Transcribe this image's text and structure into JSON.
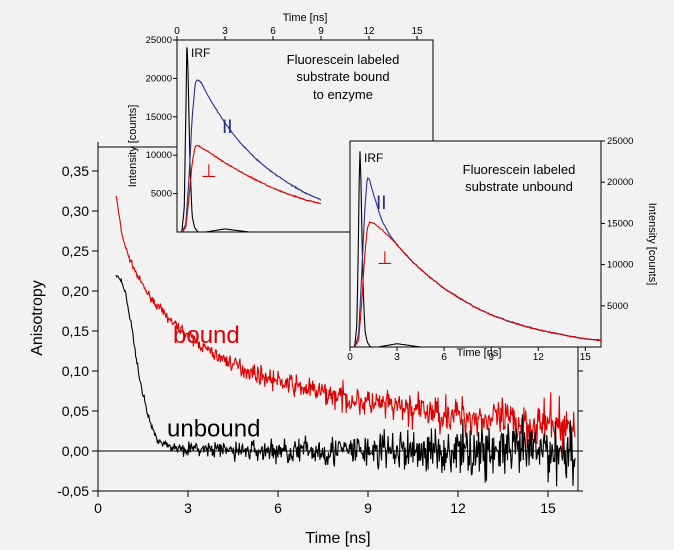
{
  "chart_data": [
    {
      "type": "line",
      "title": "",
      "xlabel": "Time [ns]",
      "ylabel": "Anisotropy",
      "xlim": [
        0,
        16
      ],
      "ylim": [
        -0.05,
        0.38
      ],
      "xticks": [
        0,
        3,
        6,
        9,
        12,
        15
      ],
      "xtick_labels": [
        "0",
        "3",
        "6",
        "9",
        "12",
        "15"
      ],
      "yticks": [
        -0.05,
        0,
        0.05,
        0.1,
        0.15,
        0.2,
        0.25,
        0.3,
        0.35
      ],
      "ytick_labels": [
        "-0,05",
        "0,00",
        "0,05",
        "0,10",
        "0,15",
        "0,20",
        "0,25",
        "0,30",
        "0,35"
      ],
      "grid": false,
      "annotations": [
        {
          "text": "bound",
          "x": 2.5,
          "y": 0.135,
          "color": "#e00000"
        },
        {
          "text": "unbound",
          "x": 2.3,
          "y": 0.018,
          "color": "#000000"
        }
      ],
      "series": [
        {
          "color": "#e00000",
          "x": [
            0.6,
            0.8,
            1.0,
            1.3,
            1.6,
            2.0,
            2.5,
            3.0,
            3.5,
            4.0,
            5.0,
            6.0,
            7.0,
            8.0,
            9.0,
            10.0,
            11.0,
            12.0,
            13.0,
            14.0,
            15.0,
            15.9
          ],
          "y": [
            0.32,
            0.27,
            0.245,
            0.22,
            0.2,
            0.18,
            0.16,
            0.145,
            0.13,
            0.118,
            0.1,
            0.087,
            0.077,
            0.068,
            0.06,
            0.054,
            0.049,
            0.045,
            0.04,
            0.036,
            0.033,
            0.03
          ]
        },
        {
          "color": "#000000",
          "x": [
            0.6,
            0.75,
            0.9,
            1.1,
            1.3,
            1.5,
            1.7,
            1.9,
            2.2,
            2.6,
            3.0,
            4.0,
            6.0,
            8.0,
            10.0,
            12.0,
            14.0,
            15.9
          ],
          "y": [
            0.22,
            0.215,
            0.2,
            0.16,
            0.11,
            0.07,
            0.04,
            0.02,
            0.008,
            0.004,
            0.003,
            0.001,
            0.0,
            0.0,
            0.0,
            0.0,
            0.0,
            0.0
          ]
        }
      ],
      "noise": [
        {
          "series": 0,
          "start": 0.002,
          "end": 0.026
        },
        {
          "series": 1,
          "start": 0.002,
          "end": 0.034
        }
      ]
    },
    {
      "type": "line",
      "title": "Fluorescein labeled substrate bound to enzyme",
      "title_lines": [
        "Fluorescein labeled",
        "substrate bound",
        "to enzyme"
      ],
      "xlabel": "Time [ns]",
      "ylabel": "Intensity [counts]",
      "xlim": [
        0,
        16
      ],
      "ylim": [
        0,
        25000
      ],
      "xticks": [
        0,
        3,
        6,
        9,
        12,
        15
      ],
      "xtick_labels": [
        "0",
        "3",
        "6",
        "9",
        "12",
        "15"
      ],
      "yticks": [
        5000,
        10000,
        15000,
        20000,
        25000
      ],
      "ytick_labels": [
        "5000",
        "10000",
        "15000",
        "20000",
        "25000"
      ],
      "legend": [
        "IRF",
        "II",
        "⊥"
      ],
      "series": [
        {
          "name": "IRF",
          "color": "#000000",
          "x": [
            0.0,
            0.3,
            0.45,
            0.55,
            0.62,
            0.7,
            0.82,
            0.95,
            1.1,
            1.3,
            1.8,
            3.0,
            4.5,
            8.0
          ],
          "y": [
            0,
            0,
            3000,
            15000,
            25000,
            20000,
            8000,
            2000,
            600,
            0,
            0,
            400,
            0,
            0
          ]
        },
        {
          "name": "II",
          "color": "#2b2f8f",
          "x": [
            0.3,
            0.55,
            0.75,
            0.95,
            1.15,
            1.3,
            1.5,
            2.0,
            2.5,
            3.0,
            3.5,
            4.0,
            5.0,
            6.0,
            7.0,
            8.0,
            9.0
          ],
          "y": [
            0,
            1000,
            7000,
            15000,
            19500,
            19800,
            19500,
            17500,
            15800,
            14200,
            12800,
            11500,
            9400,
            7700,
            6300,
            5100,
            4200
          ]
        },
        {
          "name": "⊥",
          "color": "#e00000",
          "x": [
            0.3,
            0.55,
            0.75,
            0.95,
            1.15,
            1.3,
            1.5,
            2.0,
            2.5,
            3.0,
            3.5,
            4.0,
            5.0,
            6.0,
            7.0,
            8.0,
            9.0
          ],
          "y": [
            0,
            600,
            4500,
            9000,
            11200,
            11300,
            11000,
            10400,
            9700,
            9000,
            8400,
            7800,
            6700,
            5700,
            4900,
            4200,
            3700
          ]
        }
      ]
    },
    {
      "type": "line",
      "title": "Fluorescein labeled substrate unbound",
      "title_lines": [
        "Fluorescein labeled",
        "substrate unbound"
      ],
      "xlabel": "Time [ns]",
      "ylabel": "Intensity [counts]",
      "xlim": [
        0,
        16
      ],
      "ylim": [
        0,
        25000
      ],
      "xticks": [
        0,
        3,
        6,
        9,
        12,
        15
      ],
      "xtick_labels": [
        "0",
        "3",
        "6",
        "9",
        "12",
        "15"
      ],
      "yticks": [
        5000,
        10000,
        15000,
        20000,
        25000
      ],
      "ytick_labels": [
        "5000",
        "10000",
        "15000",
        "20000",
        "25000"
      ],
      "legend": [
        "IRF",
        "II",
        "⊥"
      ],
      "series": [
        {
          "name": "IRF",
          "color": "#000000",
          "x": [
            0.0,
            0.3,
            0.45,
            0.55,
            0.62,
            0.7,
            0.82,
            0.95,
            1.1,
            1.3,
            1.8,
            3.0,
            4.5,
            16.0
          ],
          "y": [
            0,
            0,
            3000,
            15000,
            25000,
            20000,
            8000,
            2000,
            600,
            0,
            0,
            400,
            0,
            0
          ]
        },
        {
          "name": "II",
          "color": "#2b2f8f",
          "x": [
            0.3,
            0.55,
            0.75,
            0.95,
            1.1,
            1.25,
            1.5,
            2.0,
            2.5,
            3.0,
            4.0,
            5.0,
            6.0,
            7.0,
            8.0,
            9.0,
            10.0,
            11.0,
            12.0,
            13.0,
            14.0,
            15.0,
            16.0
          ],
          "y": [
            0,
            1500,
            9000,
            17000,
            20500,
            20300,
            18500,
            15500,
            13700,
            12400,
            10300,
            8600,
            7100,
            5900,
            4800,
            3900,
            3200,
            2600,
            2100,
            1700,
            1300,
            1000,
            800
          ]
        },
        {
          "name": "⊥",
          "color": "#e00000",
          "x": [
            0.3,
            0.55,
            0.75,
            0.95,
            1.1,
            1.25,
            1.5,
            2.0,
            2.5,
            3.0,
            4.0,
            5.0,
            6.0,
            7.0,
            8.0,
            9.0,
            10.0,
            11.0,
            12.0,
            13.0,
            14.0,
            15.0,
            16.0
          ],
          "y": [
            0,
            800,
            5500,
            11500,
            14300,
            15200,
            15000,
            14300,
            13400,
            12400,
            10300,
            8600,
            7100,
            5900,
            4800,
            3900,
            3200,
            2600,
            2100,
            1700,
            1300,
            1000,
            800
          ]
        }
      ]
    }
  ]
}
